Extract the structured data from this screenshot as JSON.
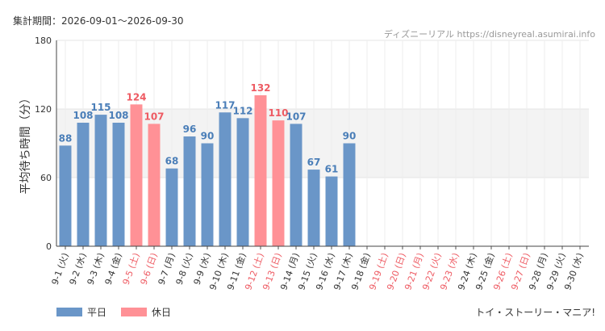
{
  "header": {
    "period": "集計期間：2026-09-01〜2026-09-30",
    "source": "ディズニーリアル https://disneyreal.asumirai.info"
  },
  "footer": {
    "attraction": "トイ・ストーリー・マニア!"
  },
  "colors": {
    "weekday": "#6a96c8",
    "holiday": "#ff9196",
    "weekday_label": "#4a7eb8",
    "holiday_label": "#ee5b63",
    "band": "#f3f3f3",
    "grid": "#e5e5e5"
  },
  "chart_data": {
    "type": "bar",
    "ylabel": "平均待ち時間（分）",
    "ylim": [
      0,
      180
    ],
    "yticks": [
      0,
      60,
      120,
      180
    ],
    "shaded_band": [
      60,
      120
    ],
    "legend": [
      {
        "label": "平日",
        "key": "weekday"
      },
      {
        "label": "休日",
        "key": "holiday"
      }
    ],
    "categories": [
      {
        "label": "9-1 (火)",
        "value": 88,
        "holiday": false
      },
      {
        "label": "9-2 (水)",
        "value": 108,
        "holiday": false
      },
      {
        "label": "9-3 (木)",
        "value": 115,
        "holiday": false
      },
      {
        "label": "9-4 (金)",
        "value": 108,
        "holiday": false
      },
      {
        "label": "9-5 (土)",
        "value": 124,
        "holiday": true
      },
      {
        "label": "9-6 (日)",
        "value": 107,
        "holiday": true
      },
      {
        "label": "9-7 (月)",
        "value": 68,
        "holiday": false
      },
      {
        "label": "9-8 (火)",
        "value": 96,
        "holiday": false
      },
      {
        "label": "9-9 (水)",
        "value": 90,
        "holiday": false
      },
      {
        "label": "9-10 (木)",
        "value": 117,
        "holiday": false
      },
      {
        "label": "9-11 (金)",
        "value": 112,
        "holiday": false
      },
      {
        "label": "9-12 (土)",
        "value": 132,
        "holiday": true
      },
      {
        "label": "9-13 (日)",
        "value": 110,
        "holiday": true
      },
      {
        "label": "9-14 (月)",
        "value": 107,
        "holiday": false
      },
      {
        "label": "9-15 (火)",
        "value": 67,
        "holiday": false
      },
      {
        "label": "9-16 (水)",
        "value": 61,
        "holiday": false
      },
      {
        "label": "9-17 (木)",
        "value": 90,
        "holiday": false
      },
      {
        "label": "9-18 (金)",
        "value": null,
        "holiday": false
      },
      {
        "label": "9-19 (土)",
        "value": null,
        "holiday": true
      },
      {
        "label": "9-20 (日)",
        "value": null,
        "holiday": true
      },
      {
        "label": "9-21 (月)",
        "value": null,
        "holiday": true
      },
      {
        "label": "9-22 (火)",
        "value": null,
        "holiday": true
      },
      {
        "label": "9-23 (水)",
        "value": null,
        "holiday": true
      },
      {
        "label": "9-24 (木)",
        "value": null,
        "holiday": false
      },
      {
        "label": "9-25 (金)",
        "value": null,
        "holiday": false
      },
      {
        "label": "9-26 (土)",
        "value": null,
        "holiday": true
      },
      {
        "label": "9-27 (日)",
        "value": null,
        "holiday": true
      },
      {
        "label": "9-28 (月)",
        "value": null,
        "holiday": false
      },
      {
        "label": "9-29 (火)",
        "value": null,
        "holiday": false
      },
      {
        "label": "9-30 (水)",
        "value": null,
        "holiday": false
      }
    ]
  }
}
